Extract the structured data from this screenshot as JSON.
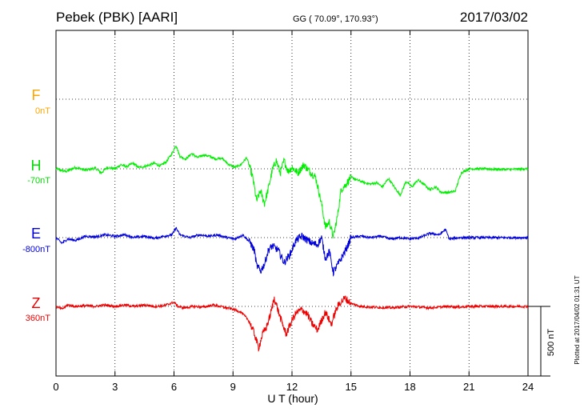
{
  "header": {
    "station": "Pebek (PBK)  [AARI]",
    "coords": "GG ( 70.09°, 170.93°)",
    "date": "2017/03/02"
  },
  "footer": {
    "plotted": "Plotted at 2017/04/02 01:31  UT"
  },
  "chart_data": {
    "type": "line",
    "title": "Pebek (PBK)  [AARI]",
    "xlabel": "U T (hour)",
    "x_ticks": [
      "0",
      "3",
      "6",
      "9",
      "12",
      "15",
      "18",
      "21",
      "24"
    ],
    "xlim": [
      0,
      24
    ],
    "grid": true,
    "scale_bar": {
      "label": "500 nT",
      "value_nT": 500
    },
    "series": [
      {
        "name": "F",
        "baseline_label": "0nT",
        "color": "#FFA500",
        "points": []
      },
      {
        "name": "H",
        "baseline_label": "-70nT",
        "color": "#00EE00",
        "points": [
          [
            0,
            0
          ],
          [
            0.5,
            -20
          ],
          [
            1,
            10
          ],
          [
            1.5,
            -10
          ],
          [
            2,
            5
          ],
          [
            2.3,
            -30
          ],
          [
            2.6,
            10
          ],
          [
            3,
            0
          ],
          [
            3.3,
            30
          ],
          [
            3.6,
            15
          ],
          [
            3.9,
            40
          ],
          [
            4.2,
            10
          ],
          [
            4.6,
            20
          ],
          [
            5,
            40
          ],
          [
            5.3,
            20
          ],
          [
            5.6,
            50
          ],
          [
            5.9,
            110
          ],
          [
            6.1,
            170
          ],
          [
            6.3,
            90
          ],
          [
            6.6,
            70
          ],
          [
            6.9,
            110
          ],
          [
            7.2,
            80
          ],
          [
            7.5,
            100
          ],
          [
            7.8,
            90
          ],
          [
            8.1,
            70
          ],
          [
            8.4,
            80
          ],
          [
            8.8,
            30
          ],
          [
            9.1,
            10
          ],
          [
            9.4,
            30
          ],
          [
            9.7,
            80
          ],
          [
            10,
            -60
          ],
          [
            10.2,
            -230
          ],
          [
            10.4,
            -160
          ],
          [
            10.6,
            -250
          ],
          [
            10.8,
            -140
          ],
          [
            11,
            -10
          ],
          [
            11.2,
            60
          ],
          [
            11.4,
            -30
          ],
          [
            11.6,
            60
          ],
          [
            11.8,
            -20
          ],
          [
            12,
            10
          ],
          [
            12.3,
            -30
          ],
          [
            12.6,
            30
          ],
          [
            12.9,
            -20
          ],
          [
            13.2,
            -60
          ],
          [
            13.5,
            -250
          ],
          [
            13.7,
            -420
          ],
          [
            13.9,
            -380
          ],
          [
            14.1,
            -490
          ],
          [
            14.3,
            -350
          ],
          [
            14.5,
            -150
          ],
          [
            14.7,
            -120
          ],
          [
            15,
            -60
          ],
          [
            15.3,
            -80
          ],
          [
            15.7,
            -100
          ],
          [
            16,
            -110
          ],
          [
            16.3,
            -100
          ],
          [
            16.6,
            -130
          ],
          [
            16.9,
            -70
          ],
          [
            17.2,
            -130
          ],
          [
            17.5,
            -190
          ],
          [
            17.8,
            -90
          ],
          [
            18.1,
            -130
          ],
          [
            18.4,
            -80
          ],
          [
            18.7,
            -110
          ],
          [
            19,
            -150
          ],
          [
            19.3,
            -130
          ],
          [
            19.6,
            -170
          ],
          [
            20,
            -170
          ],
          [
            20.3,
            -160
          ],
          [
            20.6,
            -30
          ],
          [
            21,
            0
          ],
          [
            21.5,
            0
          ],
          [
            22,
            -2
          ],
          [
            23,
            -5
          ],
          [
            24,
            0
          ]
        ]
      },
      {
        "name": "E",
        "baseline_label": "-800nT",
        "color": "#0000DD",
        "points": [
          [
            0,
            0
          ],
          [
            0.3,
            -40
          ],
          [
            0.6,
            -10
          ],
          [
            1,
            -20
          ],
          [
            1.5,
            10
          ],
          [
            2,
            5
          ],
          [
            2.5,
            20
          ],
          [
            3,
            10
          ],
          [
            3.5,
            20
          ],
          [
            4,
            0
          ],
          [
            4.5,
            10
          ],
          [
            5,
            -5
          ],
          [
            5.5,
            10
          ],
          [
            5.9,
            20
          ],
          [
            6.1,
            70
          ],
          [
            6.3,
            20
          ],
          [
            6.8,
            0
          ],
          [
            7.3,
            20
          ],
          [
            7.8,
            10
          ],
          [
            8.2,
            20
          ],
          [
            8.7,
            0
          ],
          [
            9.1,
            -10
          ],
          [
            9.5,
            20
          ],
          [
            9.9,
            -40
          ],
          [
            10.1,
            -100
          ],
          [
            10.2,
            -200
          ],
          [
            10.4,
            -240
          ],
          [
            10.6,
            -190
          ],
          [
            10.8,
            -90
          ],
          [
            11,
            -60
          ],
          [
            11.3,
            -90
          ],
          [
            11.6,
            -180
          ],
          [
            11.9,
            -120
          ],
          [
            12.2,
            -20
          ],
          [
            12.5,
            10
          ],
          [
            12.8,
            -20
          ],
          [
            13,
            -40
          ],
          [
            13.3,
            -50
          ],
          [
            13.5,
            0
          ],
          [
            13.7,
            -150
          ],
          [
            13.9,
            -100
          ],
          [
            14.1,
            -250
          ],
          [
            14.3,
            -200
          ],
          [
            14.5,
            -150
          ],
          [
            14.8,
            -70
          ],
          [
            15,
            0
          ],
          [
            15.5,
            10
          ],
          [
            16,
            0
          ],
          [
            16.5,
            10
          ],
          [
            17,
            -10
          ],
          [
            17.5,
            0
          ],
          [
            18,
            -10
          ],
          [
            18.5,
            0
          ],
          [
            19,
            30
          ],
          [
            19.5,
            20
          ],
          [
            19.8,
            60
          ],
          [
            20,
            -10
          ],
          [
            20.5,
            0
          ],
          [
            21,
            0
          ],
          [
            22,
            0
          ],
          [
            23,
            0
          ],
          [
            24,
            0
          ]
        ]
      },
      {
        "name": "Z",
        "baseline_label": "360nT",
        "color": "#EE0000",
        "points": [
          [
            0,
            0
          ],
          [
            0.3,
            -20
          ],
          [
            0.6,
            10
          ],
          [
            1,
            0
          ],
          [
            1.5,
            5
          ],
          [
            2,
            0
          ],
          [
            2.5,
            10
          ],
          [
            3,
            0
          ],
          [
            3.5,
            10
          ],
          [
            4,
            0
          ],
          [
            4.5,
            10
          ],
          [
            5,
            0
          ],
          [
            5.5,
            5
          ],
          [
            5.8,
            20
          ],
          [
            6,
            30
          ],
          [
            6.2,
            0
          ],
          [
            6.5,
            -10
          ],
          [
            7,
            0
          ],
          [
            7.5,
            -5
          ],
          [
            8,
            10
          ],
          [
            8.5,
            -5
          ],
          [
            9,
            -20
          ],
          [
            9.4,
            -40
          ],
          [
            9.8,
            -100
          ],
          [
            10.1,
            -200
          ],
          [
            10.3,
            -300
          ],
          [
            10.5,
            -200
          ],
          [
            10.7,
            -150
          ],
          [
            10.9,
            -60
          ],
          [
            11.1,
            60
          ],
          [
            11.4,
            -80
          ],
          [
            11.7,
            -200
          ],
          [
            12,
            -100
          ],
          [
            12.2,
            -50
          ],
          [
            12.5,
            -20
          ],
          [
            12.8,
            -60
          ],
          [
            13,
            -120
          ],
          [
            13.3,
            -170
          ],
          [
            13.5,
            -100
          ],
          [
            13.7,
            -40
          ],
          [
            14,
            -130
          ],
          [
            14.2,
            -40
          ],
          [
            14.4,
            20
          ],
          [
            14.7,
            60
          ],
          [
            15,
            20
          ],
          [
            15.5,
            0
          ],
          [
            16,
            -5
          ],
          [
            17,
            -10
          ],
          [
            18,
            0
          ],
          [
            19,
            -10
          ],
          [
            20,
            0
          ],
          [
            20.5,
            -5
          ],
          [
            21,
            0
          ],
          [
            22,
            0
          ],
          [
            23,
            0
          ],
          [
            24,
            0
          ]
        ]
      }
    ]
  }
}
